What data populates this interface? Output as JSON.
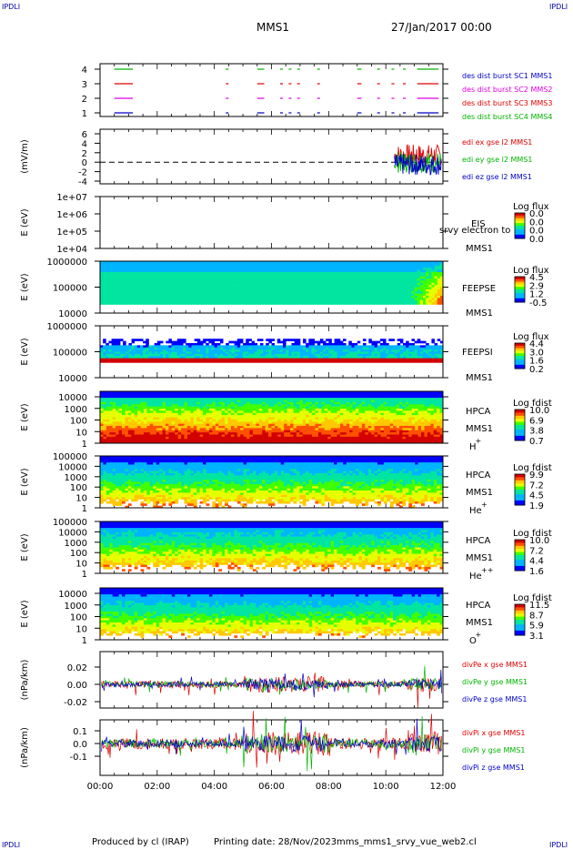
{
  "corners": {
    "tl": "IPDLI",
    "tr": "IPDLI",
    "bl": "IPDLI",
    "br": "IPDLI"
  },
  "header": {
    "spacecraft": "MMS1",
    "date": "27/Jan/2017 00:00"
  },
  "footer": {
    "produced": "Produced by cl (IRAP)",
    "printed": "Printing date: 28/Nov/2023",
    "script": "mms_mms1_srvy_vue_web2.cl"
  },
  "colors": {
    "blue": "#0000c8",
    "red": "#e00000",
    "magenta": "#e000e0",
    "green": "#00b400",
    "axis": "#000000"
  },
  "chart_data": [
    {
      "type": "line",
      "id": "burst",
      "yticks": [
        "4",
        "3",
        "2",
        "1"
      ],
      "ylim": [
        0.5,
        4.5
      ],
      "legend": [
        {
          "text": "des dist burst SC1 MMS1",
          "color": "#0000c8"
        },
        {
          "text": "des dist burst SC2 MMS2",
          "color": "#e000e0"
        },
        {
          "text": "des dist burst SC3 MMS3",
          "color": "#e00000"
        },
        {
          "text": "des dist burst SC4 MMS4",
          "color": "#00b400"
        }
      ],
      "segments_hours": [
        [
          0.5,
          1.1
        ],
        [
          4.4,
          4.45
        ],
        [
          5.5,
          5.7
        ],
        [
          6.3,
          6.35
        ],
        [
          6.6,
          6.65
        ],
        [
          6.9,
          6.95
        ],
        [
          7.6,
          7.65
        ],
        [
          9.0,
          9.1
        ],
        [
          9.7,
          9.75
        ],
        [
          10.2,
          10.25
        ],
        [
          10.6,
          10.65
        ],
        [
          11.1,
          11.8
        ]
      ]
    },
    {
      "type": "line",
      "id": "efield",
      "ylabel": "(mV/m)",
      "yticks": [
        "6",
        "4",
        "2",
        "0",
        "-2",
        "-4"
      ],
      "ylim": [
        -4,
        6
      ],
      "legend": [
        {
          "text": "edi ex gse l2 MMS1",
          "color": "#e00000"
        },
        {
          "text": "edi ey gse l2 MMS1",
          "color": "#00b400"
        },
        {
          "text": "edi ez gse l2 MMS1",
          "color": "#0000c8"
        }
      ]
    },
    {
      "type": "heatmap",
      "id": "eis",
      "ylabel": "E (eV)",
      "yticks": [
        "1e+07",
        "1e+06",
        "1e+05",
        "1e+04"
      ],
      "labels": [
        "EIS",
        "srvy electron to",
        "MMS1"
      ],
      "colorbar": {
        "title": "Log flux",
        "ticks": [
          "0.0",
          "0.0",
          "0.0",
          "0.0"
        ]
      }
    },
    {
      "type": "heatmap",
      "id": "feepse",
      "ylabel": "E (eV)",
      "yticks": [
        "1000000",
        "100000",
        "10000"
      ],
      "labels": [
        "FEEPSE",
        "MMS1"
      ],
      "colorbar": {
        "title": "Log flux",
        "ticks": [
          "4.5",
          "2.9",
          "1.2",
          "-0.5"
        ]
      }
    },
    {
      "type": "heatmap",
      "id": "feepsi",
      "ylabel": "E (eV)",
      "yticks": [
        "1000000",
        "100000",
        "10000"
      ],
      "labels": [
        "FEEPSI",
        "MMS1"
      ],
      "colorbar": {
        "title": "Log flux",
        "ticks": [
          "4.4",
          "3.0",
          "1.6",
          "0.2"
        ]
      }
    },
    {
      "type": "heatmap",
      "id": "hpca-h",
      "ylabel": "E (eV)",
      "yticks": [
        "10000",
        "1000",
        "100",
        "10",
        "1"
      ],
      "labels": [
        "HPCA",
        "MMS1",
        "H",
        "+"
      ],
      "colorbar": {
        "title": "Log fdist",
        "ticks": [
          "10.0",
          "6.9",
          "3.8",
          "0.7"
        ]
      }
    },
    {
      "type": "heatmap",
      "id": "hpca-he",
      "ylabel": "E (eV)",
      "yticks": [
        "100000",
        "10000",
        "1000",
        "100",
        "10",
        "1"
      ],
      "labels": [
        "HPCA",
        "MMS1",
        "He",
        "+"
      ],
      "colorbar": {
        "title": "Log fdist",
        "ticks": [
          "9.9",
          "7.2",
          "4.5",
          "1.9"
        ]
      }
    },
    {
      "type": "heatmap",
      "id": "hpca-hepp",
      "ylabel": "E (eV)",
      "yticks": [
        "100000",
        "10000",
        "1000",
        "100",
        "10",
        "1"
      ],
      "labels": [
        "HPCA",
        "MMS1",
        "He",
        "++"
      ],
      "colorbar": {
        "title": "Log fdist",
        "ticks": [
          "10.0",
          "7.2",
          "4.4",
          "1.6"
        ]
      }
    },
    {
      "type": "heatmap",
      "id": "hpca-o",
      "ylabel": "E (eV)",
      "yticks": [
        "10000",
        "1000",
        "100",
        "10",
        "1"
      ],
      "labels": [
        "HPCA",
        "MMS1",
        "O",
        "+"
      ],
      "colorbar": {
        "title": "Log fdist",
        "ticks": [
          "11.5",
          "8.7",
          "5.9",
          "3.1"
        ]
      }
    },
    {
      "type": "line",
      "id": "divpe",
      "ylabel": "(nPa/km)",
      "yticks": [
        "0.02",
        "0.00",
        "-0.02"
      ],
      "ylim": [
        -0.03,
        0.04
      ],
      "legend": [
        {
          "text": "divPe x gse MMS1",
          "color": "#e00000"
        },
        {
          "text": "divPe y gse MMS1",
          "color": "#00b400"
        },
        {
          "text": "divPe z gse MMS1",
          "color": "#0000c8"
        }
      ]
    },
    {
      "type": "line",
      "id": "divpi",
      "ylabel": "(nPa/km)",
      "yticks": [
        "0.1",
        "0.0",
        "-0.1"
      ],
      "ylim": [
        -0.18,
        0.18
      ],
      "legend": [
        {
          "text": "divPi x gse MMS1",
          "color": "#e00000"
        },
        {
          "text": "divPi y gse MMS1",
          "color": "#00b400"
        },
        {
          "text": "divPi z gse MMS1",
          "color": "#0000c8"
        }
      ]
    }
  ],
  "xaxis": {
    "ticks": [
      "00:00",
      "02:00",
      "04:00",
      "06:00",
      "08:00",
      "10:00",
      "12:00"
    ],
    "range_hours": [
      0,
      12
    ]
  }
}
